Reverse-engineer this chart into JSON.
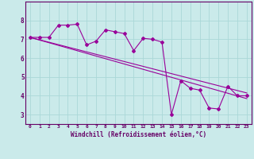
{
  "xlabel": "Windchill (Refroidissement éolien,°C)",
  "bg_color": "#caeaea",
  "plot_bg_color": "#caeaea",
  "line_color": "#990099",
  "grid_color": "#aad8d8",
  "axis_color": "#660066",
  "spine_color": "#660066",
  "xlim": [
    -0.5,
    23.5
  ],
  "ylim": [
    2.5,
    9.0
  ],
  "yticks": [
    3,
    4,
    5,
    6,
    7,
    8
  ],
  "xticks": [
    0,
    1,
    2,
    3,
    4,
    5,
    6,
    7,
    8,
    9,
    10,
    11,
    12,
    13,
    14,
    15,
    16,
    17,
    18,
    19,
    20,
    21,
    22,
    23
  ],
  "line1_x": [
    0,
    1,
    2,
    3,
    4,
    5,
    6,
    7,
    8,
    9,
    10,
    11,
    12,
    13,
    14,
    15,
    16,
    17,
    18,
    19,
    20,
    21,
    22,
    23
  ],
  "line1_y": [
    7.1,
    7.1,
    7.1,
    7.75,
    7.75,
    7.8,
    6.7,
    6.9,
    7.5,
    7.4,
    7.3,
    6.4,
    7.05,
    7.0,
    6.85,
    3.0,
    4.8,
    4.4,
    4.3,
    3.35,
    3.3,
    4.5,
    4.0,
    4.0
  ],
  "line2_x": [
    0,
    23
  ],
  "line2_y": [
    7.1,
    3.85
  ],
  "line3_x": [
    0,
    23
  ],
  "line3_y": [
    7.1,
    4.15
  ]
}
